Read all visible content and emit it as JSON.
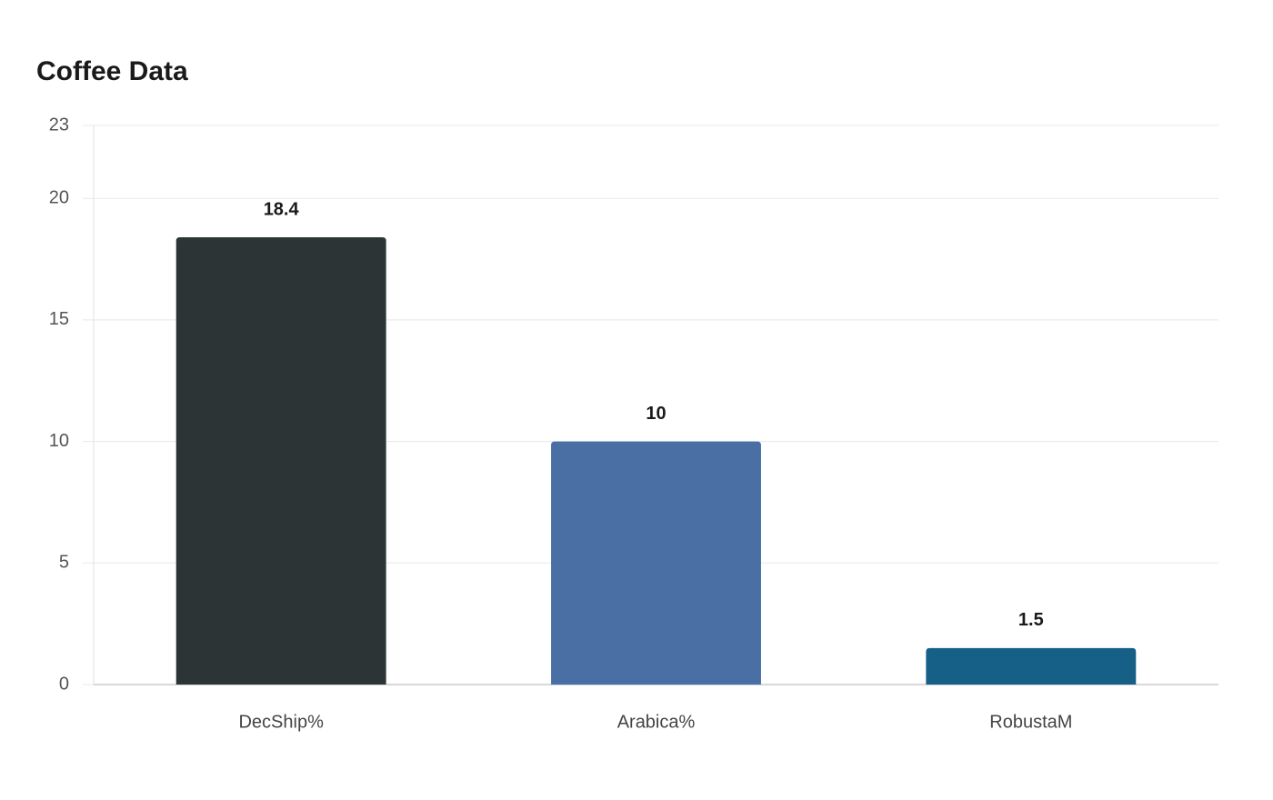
{
  "chart_data": {
    "type": "bar",
    "title": "Coffee Data",
    "categories": [
      "DecShip%",
      "Arabica%",
      "RobustaM"
    ],
    "values": [
      18.4,
      10,
      1.5
    ],
    "colors": [
      "#2d3436",
      "#4a6fa5",
      "#166088"
    ],
    "ylim": [
      0,
      23
    ],
    "yticks": [
      0,
      5,
      10,
      15,
      20,
      23
    ],
    "grid": true
  }
}
